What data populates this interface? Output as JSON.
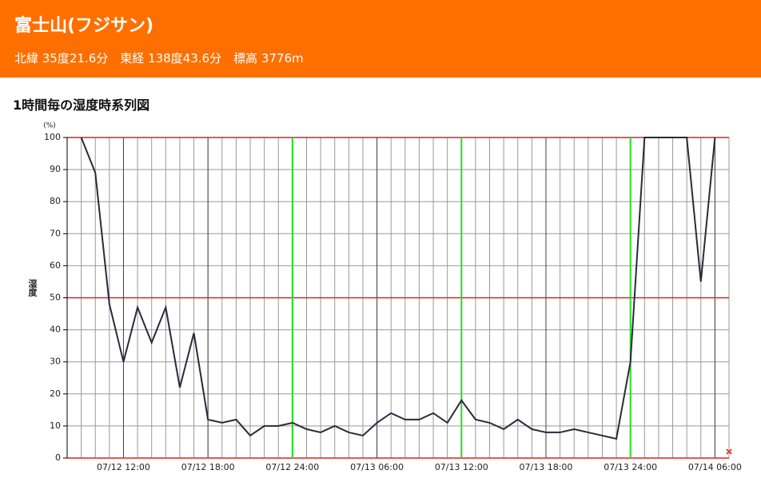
{
  "header": {
    "title": "富士山(フジサン)",
    "subtitle": "北緯 35度21.6分　東経 138度43.6分　標高 3776m"
  },
  "chart_data": {
    "type": "line",
    "title": "1時間毎の湿度時系列図",
    "y_label": "湿度",
    "y_unit": "(%)",
    "x": [
      9,
      10,
      11,
      12,
      13,
      14,
      15,
      16,
      17,
      18,
      19,
      20,
      21,
      22,
      23,
      24,
      25,
      26,
      27,
      28,
      29,
      30,
      31,
      32,
      33,
      34,
      35,
      36,
      37,
      38,
      39,
      40,
      41,
      42,
      43,
      44,
      45,
      46,
      47,
      48,
      49,
      50,
      51,
      52,
      53,
      54
    ],
    "values": [
      100,
      89,
      48,
      30,
      47,
      36,
      47,
      22,
      39,
      12,
      11,
      12,
      7,
      10,
      10,
      11,
      9,
      8,
      10,
      8,
      7,
      11,
      14,
      12,
      12,
      14,
      11,
      18,
      12,
      11,
      9,
      12,
      9,
      8,
      8,
      9,
      8,
      7,
      6,
      30,
      100,
      100,
      100,
      100,
      55,
      100
    ],
    "color": "#2a2a3a",
    "xlim": [
      8,
      55
    ],
    "xticks": [
      {
        "value": 12,
        "label": "07/12 12:00"
      },
      {
        "value": 18,
        "label": "07/12 18:00"
      },
      {
        "value": 24,
        "label": "07/12 24:00"
      },
      {
        "value": 30,
        "label": "07/13 06:00"
      },
      {
        "value": 36,
        "label": "07/13 12:00"
      },
      {
        "value": 42,
        "label": "07/13 18:00"
      },
      {
        "value": 48,
        "label": "07/13 24:00"
      },
      {
        "value": 54,
        "label": "07/14 06:00"
      }
    ],
    "ylim": [
      0,
      100
    ],
    "yticks": [
      0,
      10,
      20,
      30,
      40,
      50,
      60,
      70,
      80,
      90,
      100
    ],
    "grid": true,
    "red_lines": [
      0,
      50,
      100
    ],
    "green_lines": [
      24,
      36,
      48
    ]
  }
}
